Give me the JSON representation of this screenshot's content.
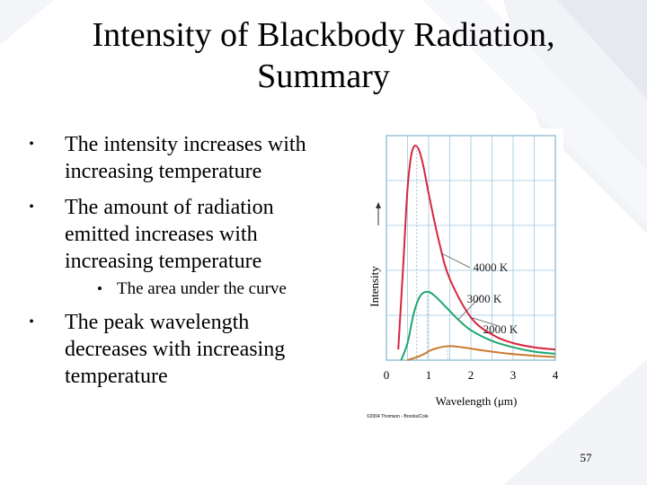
{
  "slide": {
    "title_line1": "Intensity of Blackbody Radiation,",
    "title_line2": "Summary",
    "page_number": "57"
  },
  "bullets": [
    {
      "marker": "•",
      "lines": [
        "The intensity increases with",
        "increasing temperature"
      ]
    },
    {
      "marker": "•",
      "lines": [
        "The amount of radiation",
        "emitted increases with",
        "increasing temperature"
      ]
    },
    {
      "marker": "•",
      "lines": [
        "The peak wavelength",
        "decreases with increasing",
        "temperature"
      ]
    }
  ],
  "sub_bullet": {
    "marker": "•",
    "text": "The area under the curve"
  },
  "chart_data": {
    "type": "line",
    "title": "",
    "xlabel": "Wavelength (μm)",
    "ylabel": "Intensity",
    "x_ticks": [
      "0",
      "1",
      "2",
      "3",
      "4"
    ],
    "xlim": [
      0,
      4
    ],
    "ylim": [
      0,
      1.05
    ],
    "grid": true,
    "credit": "©2004 Thomson - Brooks/Cole",
    "series": [
      {
        "name": "4000 K",
        "color": "#d7263d",
        "peak_x": 0.72,
        "x": [
          0.28,
          0.4,
          0.5,
          0.6,
          0.72,
          0.85,
          1.0,
          1.25,
          1.5,
          2.0,
          2.5,
          3.0,
          3.5,
          4.0
        ],
        "y": [
          0.05,
          0.45,
          0.8,
          0.97,
          1.0,
          0.93,
          0.78,
          0.55,
          0.38,
          0.2,
          0.12,
          0.08,
          0.06,
          0.05
        ]
      },
      {
        "name": "3000 K",
        "color": "#1ea672",
        "peak_x": 0.97,
        "x": [
          0.35,
          0.5,
          0.65,
          0.8,
          0.97,
          1.15,
          1.4,
          1.7,
          2.0,
          2.5,
          3.0,
          3.5,
          4.0
        ],
        "y": [
          0.0,
          0.08,
          0.22,
          0.3,
          0.32,
          0.3,
          0.25,
          0.19,
          0.14,
          0.09,
          0.06,
          0.04,
          0.03
        ]
      },
      {
        "name": "2000 K",
        "color": "#cc7a2e",
        "peak_x": 1.45,
        "x": [
          0.5,
          0.8,
          1.1,
          1.45,
          1.8,
          2.2,
          2.7,
          3.2,
          3.7,
          4.0
        ],
        "y": [
          0.0,
          0.02,
          0.05,
          0.065,
          0.06,
          0.048,
          0.035,
          0.025,
          0.018,
          0.015
        ]
      }
    ],
    "annotations": [
      {
        "text": "4000 K",
        "series": "4000 K"
      },
      {
        "text": "3000 K",
        "series": "3000 K"
      },
      {
        "text": "2000 K",
        "series": "2000 K"
      }
    ]
  }
}
